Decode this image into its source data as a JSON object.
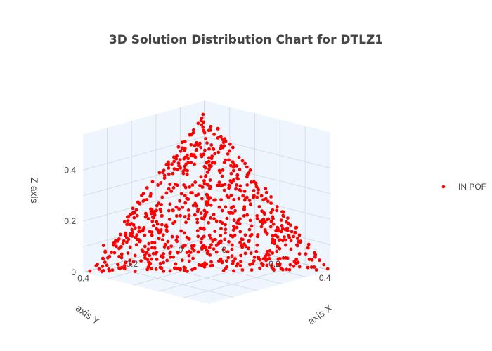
{
  "chart_data": {
    "type": "scatter",
    "subtype": "scatter3d",
    "title": "3D Solution Distribution Chart for DTLZ1",
    "xlabel": "axis X",
    "ylabel": "axis Y",
    "zlabel": "Z axis",
    "x_ticks": [
      "0",
      "0.2",
      "0.4"
    ],
    "y_ticks": [
      "0",
      "0.2",
      "0.4"
    ],
    "z_ticks": [
      "0",
      "0.2",
      "0.4"
    ],
    "xlim": [
      0,
      0.5
    ],
    "ylim": [
      0,
      0.5
    ],
    "zlim": [
      0,
      0.5
    ],
    "constraint": "x + y + z = 0.5",
    "point_count": 800,
    "series": [
      {
        "name": "IN POF",
        "color": "#ff0000"
      }
    ],
    "legend": "right",
    "grid": true
  },
  "colors": {
    "background": "#ffffff",
    "pane": "#eef5fd",
    "grid": "#d5dde6",
    "marker": "#ff0000",
    "text": "#444444"
  }
}
